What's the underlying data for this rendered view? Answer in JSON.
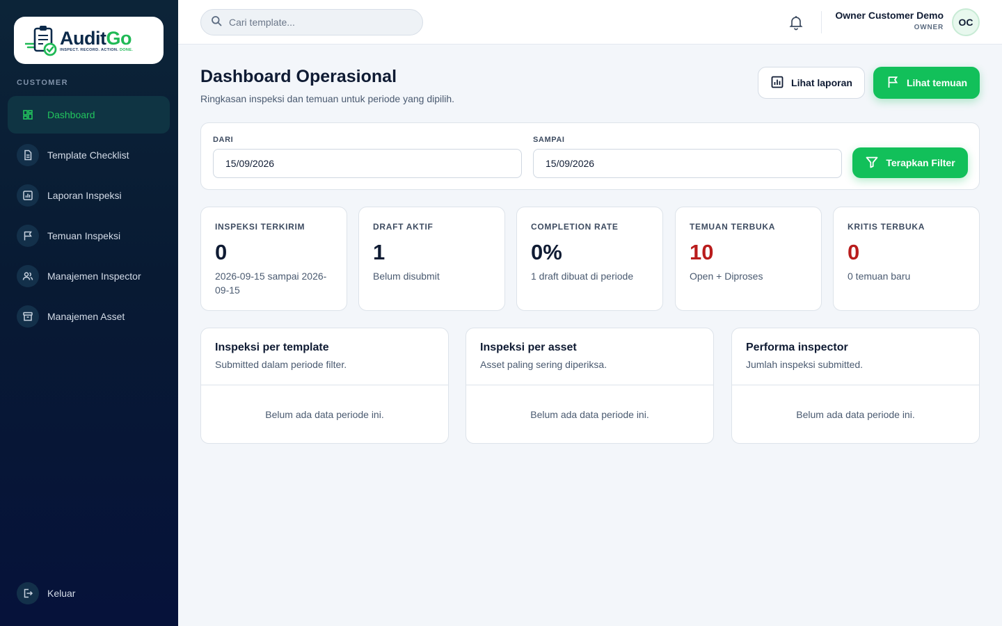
{
  "brand": {
    "name_a": "Audit",
    "name_b": "Go",
    "tagline": "INSPECT. RECORD. ACTION.",
    "tagline_done": "DONE."
  },
  "sidebar": {
    "section": "CUSTOMER",
    "items": [
      {
        "label": "Dashboard",
        "icon": "dashboard-icon",
        "active": true
      },
      {
        "label": "Template Checklist",
        "icon": "document-icon"
      },
      {
        "label": "Laporan Inspeksi",
        "icon": "report-icon"
      },
      {
        "label": "Temuan Inspeksi",
        "icon": "flag-icon"
      },
      {
        "label": "Manajemen Inspector",
        "icon": "users-icon"
      },
      {
        "label": "Manajemen Asset",
        "icon": "archive-icon"
      }
    ],
    "logout": "Keluar"
  },
  "topbar": {
    "search_placeholder": "Cari template...",
    "user_name": "Owner Customer Demo",
    "user_role": "OWNER",
    "avatar_initials": "OC"
  },
  "page": {
    "title": "Dashboard Operasional",
    "subtitle": "Ringkasan inspeksi dan temuan untuk periode yang dipilih.",
    "btn_report": "Lihat laporan",
    "btn_findings": "Lihat temuan"
  },
  "filter": {
    "from_label": "DARI",
    "from_value": "15/09/2026",
    "to_label": "SAMPAI",
    "to_value": "15/09/2026",
    "apply": "Terapkan Filter"
  },
  "stats": [
    {
      "label": "INSPEKSI TERKIRIM",
      "value": "0",
      "note": "2026-09-15 sampai 2026-09-15"
    },
    {
      "label": "DRAFT AKTIF",
      "value": "1",
      "note": "Belum disubmit"
    },
    {
      "label": "COMPLETION RATE",
      "value": "0%",
      "note": "1 draft dibuat di periode"
    },
    {
      "label": "TEMUAN TERBUKA",
      "value": "10",
      "note": "Open + Diproses"
    },
    {
      "label": "KRITIS TERBUKA",
      "value": "0",
      "note": "0 temuan baru"
    }
  ],
  "panels": [
    {
      "title": "Inspeksi per template",
      "subtitle": "Submitted dalam periode filter.",
      "empty": "Belum ada data periode ini."
    },
    {
      "title": "Inspeksi per asset",
      "subtitle": "Asset paling sering diperiksa.",
      "empty": "Belum ada data periode ini."
    },
    {
      "title": "Performa inspector",
      "subtitle": "Jumlah inspeksi submitted.",
      "empty": "Belum ada data periode ini."
    }
  ],
  "colors": {
    "accent": "#12c05a",
    "danger": "#b91c1c",
    "sidebar": "#081a33"
  }
}
